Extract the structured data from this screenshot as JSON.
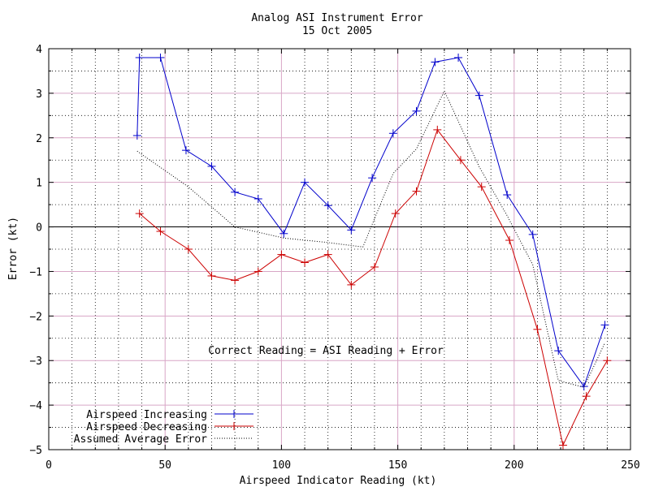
{
  "chart_data": {
    "type": "line",
    "title": "Analog ASI Instrument Error",
    "subtitle": "15 Oct 2005",
    "xlabel": "Airspeed Indicator Reading (kt)",
    "ylabel": "Error (kt)",
    "xlim": [
      0,
      250
    ],
    "ylim": [
      -5,
      4
    ],
    "xticks": [
      "0",
      "50",
      "100",
      "150",
      "200",
      "250"
    ],
    "yticks": [
      "4",
      "3",
      "2",
      "1",
      "0",
      "−1",
      "−2",
      "−3",
      "−4",
      "−5"
    ],
    "grid": true,
    "legend_position": "bottom-left",
    "annotation": "Correct Reading = ASI Reading + Error",
    "colors": {
      "increasing": "#0000cc",
      "decreasing": "#cc0000",
      "average": "#000000",
      "major_grid": "#d8a6c6",
      "minor_grid": "#000000"
    },
    "series": [
      {
        "name": "Airspeed Increasing",
        "style": "solid-plus",
        "points": [
          [
            38,
            2.05
          ],
          [
            39,
            3.8
          ],
          [
            48,
            3.8
          ],
          [
            59,
            1.72
          ],
          [
            70,
            1.36
          ],
          [
            80,
            0.78
          ],
          [
            90,
            0.63
          ],
          [
            101,
            -0.15
          ],
          [
            110,
            1.0
          ],
          [
            120,
            0.48
          ],
          [
            130,
            -0.07
          ],
          [
            139,
            1.1
          ],
          [
            148,
            2.1
          ],
          [
            158,
            2.6
          ],
          [
            166,
            3.7
          ],
          [
            176,
            3.8
          ],
          [
            185,
            2.95
          ],
          [
            197,
            0.72
          ],
          [
            208,
            -0.17
          ],
          [
            219,
            -2.78
          ],
          [
            230,
            -3.58
          ],
          [
            239,
            -2.2
          ]
        ]
      },
      {
        "name": "Airspeed Decreasing",
        "style": "solid-plus",
        "points": [
          [
            39,
            0.3
          ],
          [
            48,
            -0.1
          ],
          [
            60,
            -0.5
          ],
          [
            70,
            -1.1
          ],
          [
            80,
            -1.2
          ],
          [
            90,
            -1.0
          ],
          [
            100,
            -0.62
          ],
          [
            110,
            -0.8
          ],
          [
            120,
            -0.62
          ],
          [
            130,
            -1.3
          ],
          [
            140,
            -0.9
          ],
          [
            149,
            0.3
          ],
          [
            158,
            0.8
          ],
          [
            167,
            2.18
          ],
          [
            177,
            1.5
          ],
          [
            186,
            0.9
          ],
          [
            198,
            -0.3
          ],
          [
            210,
            -2.3
          ],
          [
            221,
            -4.9
          ],
          [
            231,
            -3.8
          ],
          [
            240,
            -3.0
          ]
        ]
      },
      {
        "name": "Assumed Average Error",
        "style": "dotted",
        "points": [
          [
            38,
            1.7
          ],
          [
            60,
            0.9
          ],
          [
            80,
            0.0
          ],
          [
            101,
            -0.25
          ],
          [
            120,
            -0.35
          ],
          [
            135,
            -0.45
          ],
          [
            148,
            1.2
          ],
          [
            158,
            1.75
          ],
          [
            170,
            3.05
          ],
          [
            185,
            1.35
          ],
          [
            197,
            0.25
          ],
          [
            208,
            -0.85
          ],
          [
            219,
            -3.45
          ],
          [
            230,
            -3.6
          ],
          [
            239,
            -2.6
          ]
        ]
      }
    ]
  }
}
